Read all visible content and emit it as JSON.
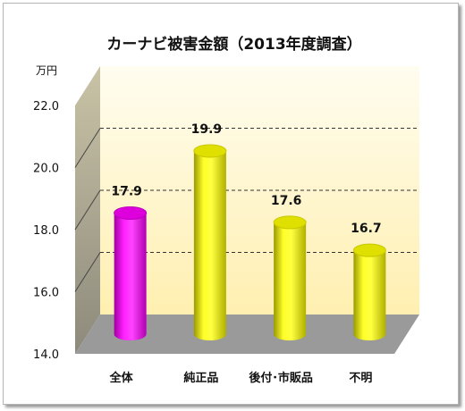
{
  "chart_data": {
    "type": "bar",
    "title": "カーナビ被害金額（2013年度調査）",
    "unit_label": "万円",
    "categories": [
      "全体",
      "純正品",
      "後付･市販品",
      "不明"
    ],
    "values": [
      17.9,
      19.9,
      17.6,
      16.7
    ],
    "value_labels": [
      "17.9",
      "19.9",
      "17.6",
      "16.7"
    ],
    "yticks": [
      "14.0",
      "16.0",
      "18.0",
      "20.0",
      "22.0"
    ],
    "ylim": [
      14,
      22
    ],
    "gridlines": [
      16,
      18,
      20
    ],
    "bar_colors": [
      "#ff00ff",
      "#ffff00",
      "#ffff00",
      "#ffff00"
    ],
    "bar_shape": "cylinder",
    "background_color": "#fff6d2",
    "floor_color": "#9a9a9a",
    "legend": "none"
  }
}
